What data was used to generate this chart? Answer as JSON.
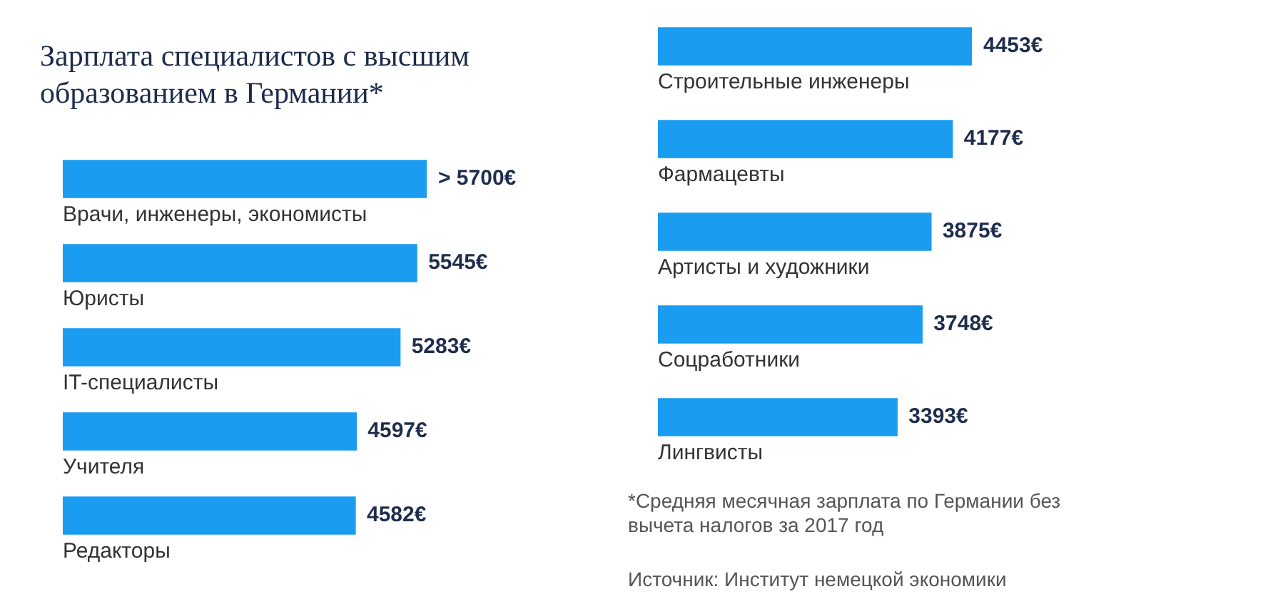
{
  "chart_data": [
    {
      "type": "bar",
      "orientation": "horizontal",
      "title": "Зарплата специалистов с высшим образованием в Германии*",
      "categories": [
        "Врачи, инженеры, экономисты",
        "Юристы",
        "IT-специалисты",
        "Учителя",
        "Редакторы"
      ],
      "values": [
        5700,
        5545,
        5283,
        4597,
        4582
      ],
      "value_labels": [
        "> 5700€",
        "5545€",
        "5283€",
        "4597€",
        "4582€"
      ],
      "color": "#1a9cf0"
    },
    {
      "type": "bar",
      "orientation": "horizontal",
      "categories": [
        "Строительные инженеры",
        "Фармацевты",
        "Артисты и художники",
        "Соцработники",
        "Лингвисты"
      ],
      "values": [
        4453,
        4177,
        3875,
        3748,
        3393
      ],
      "value_labels": [
        "4453€",
        "4177€",
        "3875€",
        "3748€",
        "3393€"
      ],
      "color": "#1a9cf0",
      "annotations": [
        "*Средняя месячная зарплата по Германии без вычета налогов за 2017 год",
        "Источник: Институт немецкой экономики"
      ]
    }
  ]
}
